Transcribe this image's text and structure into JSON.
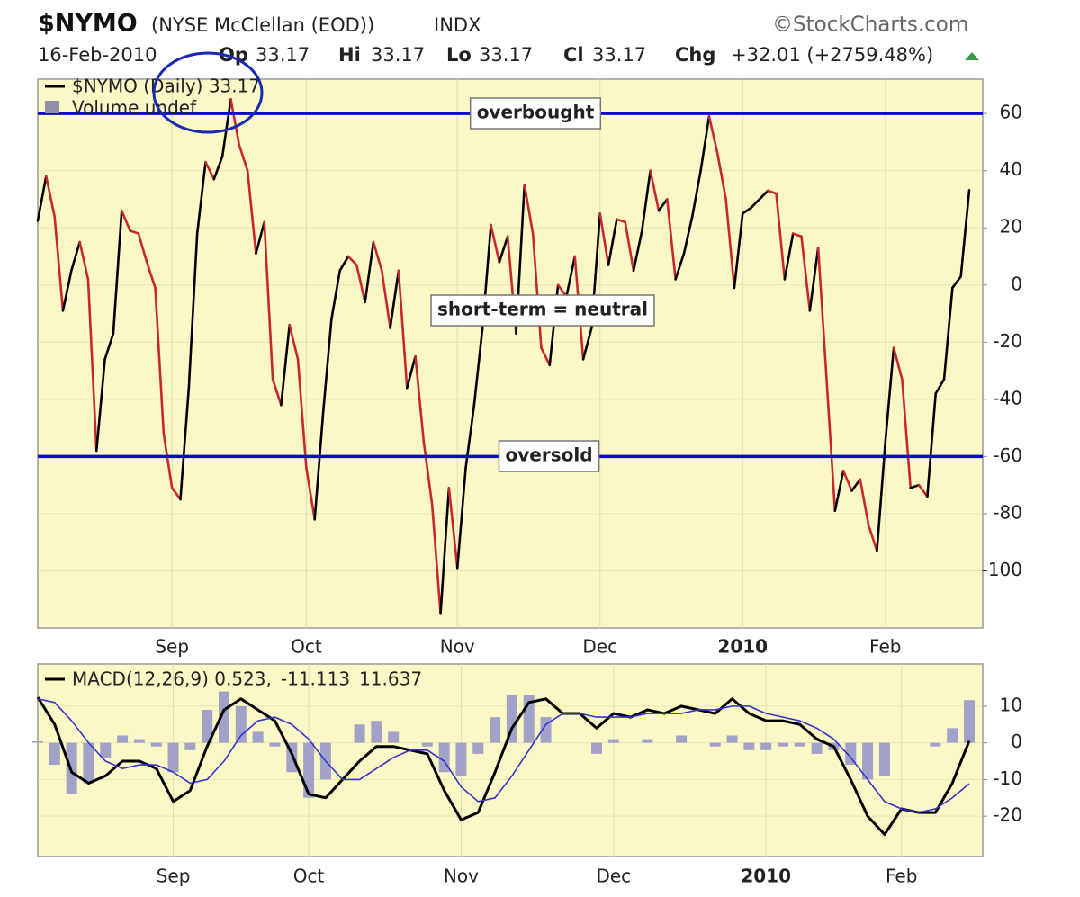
{
  "header": {
    "symbol": "$NYMO",
    "name": "(NYSE McClellan (EOD))",
    "exchange": "INDX",
    "source": "©StockCharts.com",
    "date": "16-Feb-2010",
    "fields": [
      {
        "label": "Op",
        "value": "33.17"
      },
      {
        "label": "Hi",
        "value": "33.17"
      },
      {
        "label": "Lo",
        "value": "33.17"
      },
      {
        "label": "Cl",
        "value": "33.17"
      },
      {
        "label": "Chg",
        "value": "+32.01 (+2759.48%)"
      }
    ]
  },
  "chart_data": [
    {
      "type": "line",
      "legend": [
        "$NYMO (Daily) 33.17",
        "Volume undef"
      ],
      "categories": [
        null,
        null,
        null,
        null,
        null,
        null,
        null,
        null,
        null,
        null,
        null,
        null,
        null,
        null,
        null,
        null,
        "Sep",
        null,
        null,
        null,
        null,
        null,
        null,
        null,
        null,
        null,
        null,
        null,
        null,
        null,
        null,
        null,
        "Oct",
        null,
        null,
        null,
        null,
        null,
        null,
        null,
        null,
        null,
        null,
        null,
        null,
        null,
        null,
        null,
        null,
        null,
        "Nov",
        null,
        null,
        null,
        null,
        null,
        null,
        null,
        null,
        null,
        null,
        null,
        null,
        null,
        null,
        null,
        null,
        "Dec",
        null,
        null,
        null,
        null,
        null,
        null,
        null,
        null,
        null,
        null,
        null,
        null,
        null,
        null,
        null,
        null,
        "2010",
        null,
        null,
        null,
        null,
        null,
        null,
        null,
        null,
        null,
        null,
        null,
        null,
        null,
        null,
        null,
        null,
        "Feb",
        null,
        null,
        null,
        null,
        null,
        null,
        null,
        null,
        null,
        null
      ],
      "values": [
        22.5,
        38,
        24,
        -9,
        5,
        15,
        2,
        -58,
        -26,
        -17,
        26,
        19,
        18,
        8,
        -1,
        -52,
        -71,
        -75,
        -36,
        18,
        43,
        37,
        45,
        65,
        49,
        40,
        11,
        22,
        -33,
        -42,
        -14,
        -26,
        -64,
        -82,
        -45,
        -12,
        5,
        10,
        7,
        -6,
        15,
        5,
        -15,
        5,
        -36,
        -25,
        -55,
        -77,
        -115,
        -71,
        -99,
        -64,
        -42,
        -15,
        21,
        8,
        17,
        -17,
        35,
        18,
        -22,
        -28,
        0,
        -4,
        10,
        -26,
        -15,
        25,
        7,
        23,
        22,
        5,
        19,
        40,
        26,
        30,
        2,
        11,
        24,
        40,
        59,
        46,
        30,
        -1,
        25,
        27,
        30,
        33,
        32,
        2,
        18,
        17,
        -9,
        13,
        -33,
        -79,
        -65,
        -72,
        -68,
        -84,
        -93,
        -55,
        -22,
        -33,
        -71,
        -70,
        -74,
        -38,
        -33,
        -1,
        3,
        33.17
      ],
      "up_color": "#000000",
      "down_color": "#c8282d",
      "ylim": [
        -120,
        72
      ],
      "yticks": [
        60,
        40,
        20,
        0,
        -20,
        -40,
        -60,
        -80,
        -100
      ],
      "hlines": [
        60,
        -60
      ],
      "hline_color": "#0a0ac8",
      "annotations": [
        "overbought",
        "short-term = neutral",
        "oversold"
      ],
      "grid": true,
      "background": "#fbf8c6"
    },
    {
      "type": "combo",
      "categories": [
        null,
        null,
        null,
        null,
        null,
        null,
        null,
        null,
        "Sep",
        null,
        null,
        null,
        null,
        null,
        null,
        null,
        "Oct",
        null,
        null,
        null,
        null,
        null,
        null,
        null,
        null,
        "Nov",
        null,
        null,
        null,
        null,
        null,
        null,
        null,
        null,
        "Dec",
        null,
        null,
        null,
        null,
        null,
        null,
        null,
        null,
        "2010",
        null,
        null,
        null,
        null,
        null,
        null,
        null,
        "Feb",
        null,
        null,
        null,
        null
      ],
      "series": [
        {
          "name": "MACD(12,26,9) 0.523,",
          "type": "line",
          "color": "#000000",
          "values": [
            12.4,
            5,
            -8,
            -11,
            -9,
            -5,
            -5,
            -7,
            -16,
            -13,
            -1,
            9,
            12,
            9,
            6,
            -3,
            -14,
            -15,
            -10,
            -5,
            -1,
            -1,
            -2,
            -3,
            -13,
            -21,
            -19,
            -8,
            4,
            11,
            12,
            8,
            8,
            4,
            8,
            7,
            9,
            8,
            10,
            9,
            8,
            12,
            8,
            6,
            6,
            5,
            1,
            -1,
            -10,
            -20,
            -25,
            -18,
            -19,
            -19,
            -11,
            0.523
          ]
        },
        {
          "name": "-11.113",
          "type": "line",
          "color": "#3333cc",
          "values": [
            12,
            11,
            6,
            0,
            -5,
            -7,
            -6,
            -6,
            -8,
            -11,
            -10,
            -5,
            2,
            6,
            7,
            5,
            1,
            -5,
            -10,
            -10,
            -7,
            -4,
            -2,
            -2,
            -5,
            -12,
            -16,
            -15,
            -9,
            -2,
            5,
            8,
            8,
            7,
            7,
            7,
            8,
            8,
            8,
            9,
            9,
            10,
            10,
            8,
            7,
            6,
            4,
            1,
            -4,
            -10,
            -16,
            -18,
            -19,
            -18,
            -15,
            -11.113
          ]
        },
        {
          "name": "11.637",
          "type": "bar",
          "color": "#a2a2c8",
          "values": [
            0.4,
            -6,
            -14,
            -11,
            -4,
            2,
            1,
            -1,
            -8,
            -2,
            9,
            14,
            10,
            3,
            -1,
            -8,
            -15,
            -10,
            0,
            5,
            6,
            3,
            0,
            -1,
            -8,
            -9,
            -3,
            7,
            13,
            13,
            7,
            0,
            0,
            -3,
            1,
            0,
            1,
            0,
            2,
            0,
            -1,
            2,
            -2,
            -2,
            -1,
            -1,
            -3,
            -2,
            -6,
            -10,
            -9,
            0,
            0,
            -1,
            4,
            11.637
          ]
        }
      ],
      "ylim": [
        -31,
        21.5
      ],
      "yticks": [
        10,
        0,
        -10,
        -20
      ],
      "grid": true,
      "background": "#fbf8c6"
    }
  ]
}
